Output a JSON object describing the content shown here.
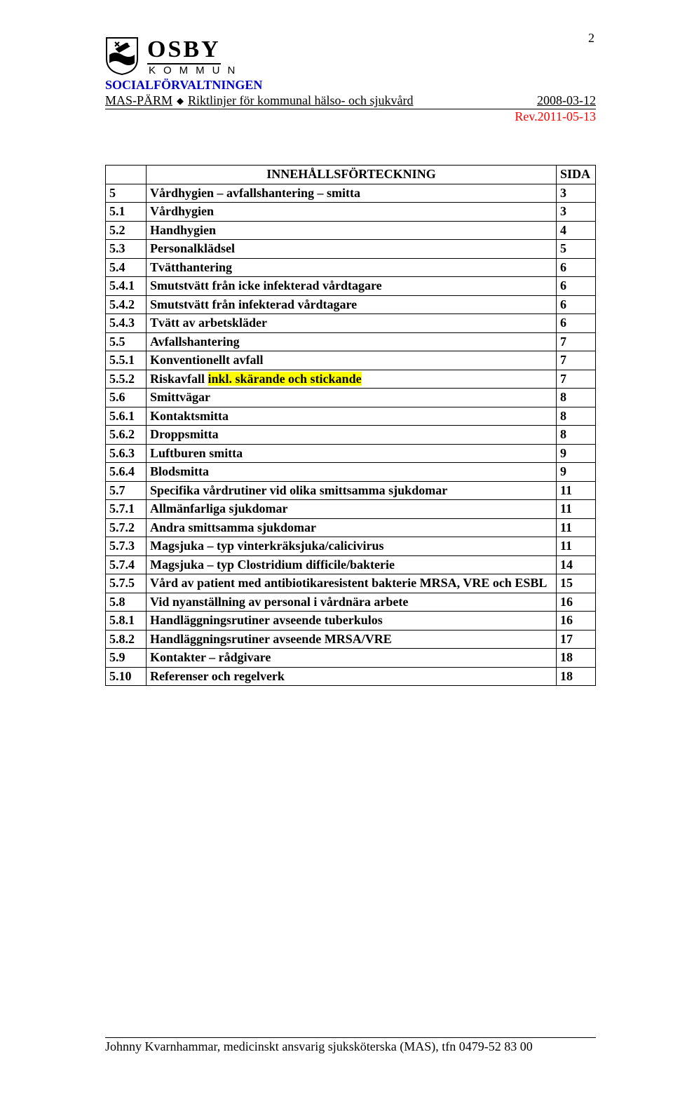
{
  "page_number": "2",
  "logo": {
    "name": "OSBY",
    "sub": "KOMMUN"
  },
  "department": "SOCIALFÖRVALTNINGEN",
  "subheader_left_prefix": "MAS-PÄRM",
  "subheader_left_rest": "Riktlinjer för kommunal hälso- och sjukvård",
  "subheader_date": "2008-03-12",
  "revision": "Rev.2011-05-13",
  "toc_header": {
    "title": "INNEHÅLLSFÖRTECKNING",
    "page": "SIDA"
  },
  "toc": [
    {
      "num": "5",
      "title": "Vårdhygien – avfallshantering – smitta",
      "page": "3"
    },
    {
      "num": "5.1",
      "title": "Vårdhygien",
      "page": "3"
    },
    {
      "num": "5.2",
      "title": "Handhygien",
      "page": "4"
    },
    {
      "num": "5.3",
      "title": "Personalklädsel",
      "page": "5"
    },
    {
      "num": "5.4",
      "title": "Tvätthantering",
      "page": "6"
    },
    {
      "num": "5.4.1",
      "title": "Smutstvätt från icke infekterad vårdtagare",
      "page": "6"
    },
    {
      "num": "5.4.2",
      "title": "Smutstvätt från infekterad vårdtagare",
      "page": "6"
    },
    {
      "num": "5.4.3",
      "title": "Tvätt av arbetskläder",
      "page": "6"
    },
    {
      "num": "5.5",
      "title": "Avfallshantering",
      "page": "7"
    },
    {
      "num": "5.5.1",
      "title": "Konventionellt avfall",
      "page": "7"
    },
    {
      "num": "5.5.2",
      "title_pre": "Riskavfall ",
      "title_hl": "inkl. skärande och stickande",
      "page": "7",
      "highlight": true
    },
    {
      "num": "5.6",
      "title": "Smittvägar",
      "page": "8"
    },
    {
      "num": "5.6.1",
      "title": "Kontaktsmitta",
      "page": "8"
    },
    {
      "num": "5.6.2",
      "title": "Droppsmitta",
      "page": "8"
    },
    {
      "num": "5.6.3",
      "title": "Luftburen smitta",
      "page": "9"
    },
    {
      "num": "5.6.4",
      "title": "Blodsmitta",
      "page": "9"
    },
    {
      "num": "5.7",
      "title": "Specifika vårdrutiner vid olika smittsamma sjukdomar",
      "page": "11"
    },
    {
      "num": "5.7.1",
      "title": "Allmänfarliga sjukdomar",
      "page": "11"
    },
    {
      "num": "5.7.2",
      "title": "Andra smittsamma sjukdomar",
      "page": "11"
    },
    {
      "num": "5.7.3",
      "title": "Magsjuka – typ vinterkräksjuka/calicivirus",
      "page": "11"
    },
    {
      "num": "5.7.4",
      "title": "Magsjuka – typ Clostridium difficile/bakterie",
      "page": "14"
    },
    {
      "num": "5.7.5",
      "title": "Vård av patient med antibiotikaresistent bakterie MRSA, VRE och ESBL",
      "page": "15"
    },
    {
      "num": "5.8",
      "title": "Vid nyanställning av personal i vårdnära arbete",
      "page": "16"
    },
    {
      "num": "5.8.1",
      "title": "Handläggningsrutiner avseende tuberkulos",
      "page": "16"
    },
    {
      "num": "5.8.2",
      "title": "Handläggningsrutiner avseende MRSA/VRE",
      "page": "17"
    },
    {
      "num": "5.9",
      "title": "Kontakter – rådgivare",
      "page": "18"
    },
    {
      "num": "5.10",
      "title": "Referenser och regelverk",
      "page": "18"
    }
  ],
  "footer": "Johnny Kvarnhammar, medicinskt ansvarig sjuksköterska (MAS), tfn 0479-52 83 00",
  "colors": {
    "text": "#000000",
    "link_blue": "#0000c8",
    "revision_red": "#ff0000",
    "highlight": "#ffff00",
    "background": "#ffffff",
    "border": "#000000"
  }
}
